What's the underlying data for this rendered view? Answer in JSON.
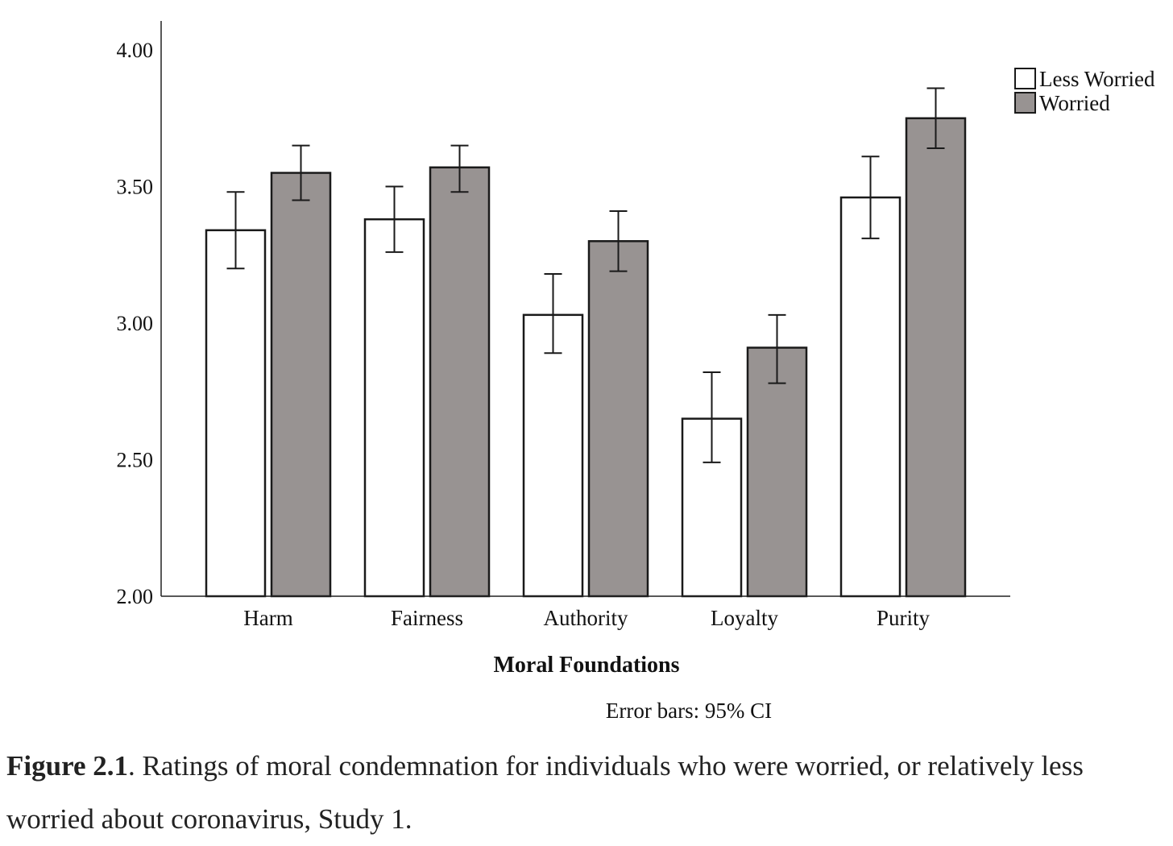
{
  "chart_data": {
    "type": "bar",
    "title": "",
    "xlabel": "Moral Foundations",
    "ylabel": "",
    "ylim": [
      2.0,
      4.0
    ],
    "yticks": [
      "2.00",
      "2.50",
      "3.00",
      "3.50",
      "4.00"
    ],
    "categories": [
      "Harm",
      "Fairness",
      "Authority",
      "Loyalty",
      "Purity"
    ],
    "series": [
      {
        "name": "Less Worried",
        "color": "#ffffff",
        "values": [
          3.34,
          3.38,
          3.03,
          2.65,
          3.46
        ],
        "ci_low": [
          3.2,
          3.26,
          2.89,
          2.49,
          3.31
        ],
        "ci_high": [
          3.48,
          3.5,
          3.18,
          2.82,
          3.61
        ]
      },
      {
        "name": "Worried",
        "color": "#989392",
        "values": [
          3.55,
          3.57,
          3.3,
          2.91,
          3.75
        ],
        "ci_low": [
          3.45,
          3.48,
          3.19,
          2.78,
          3.64
        ],
        "ci_high": [
          3.65,
          3.65,
          3.41,
          3.03,
          3.86
        ]
      }
    ],
    "legend_position": "top-right",
    "note": "Error bars: 95% CI"
  },
  "caption": {
    "label": "Figure 2.1",
    "text": ". Ratings of moral condemnation for individuals who were worried, or relatively less worried about coronavirus, Study 1."
  }
}
